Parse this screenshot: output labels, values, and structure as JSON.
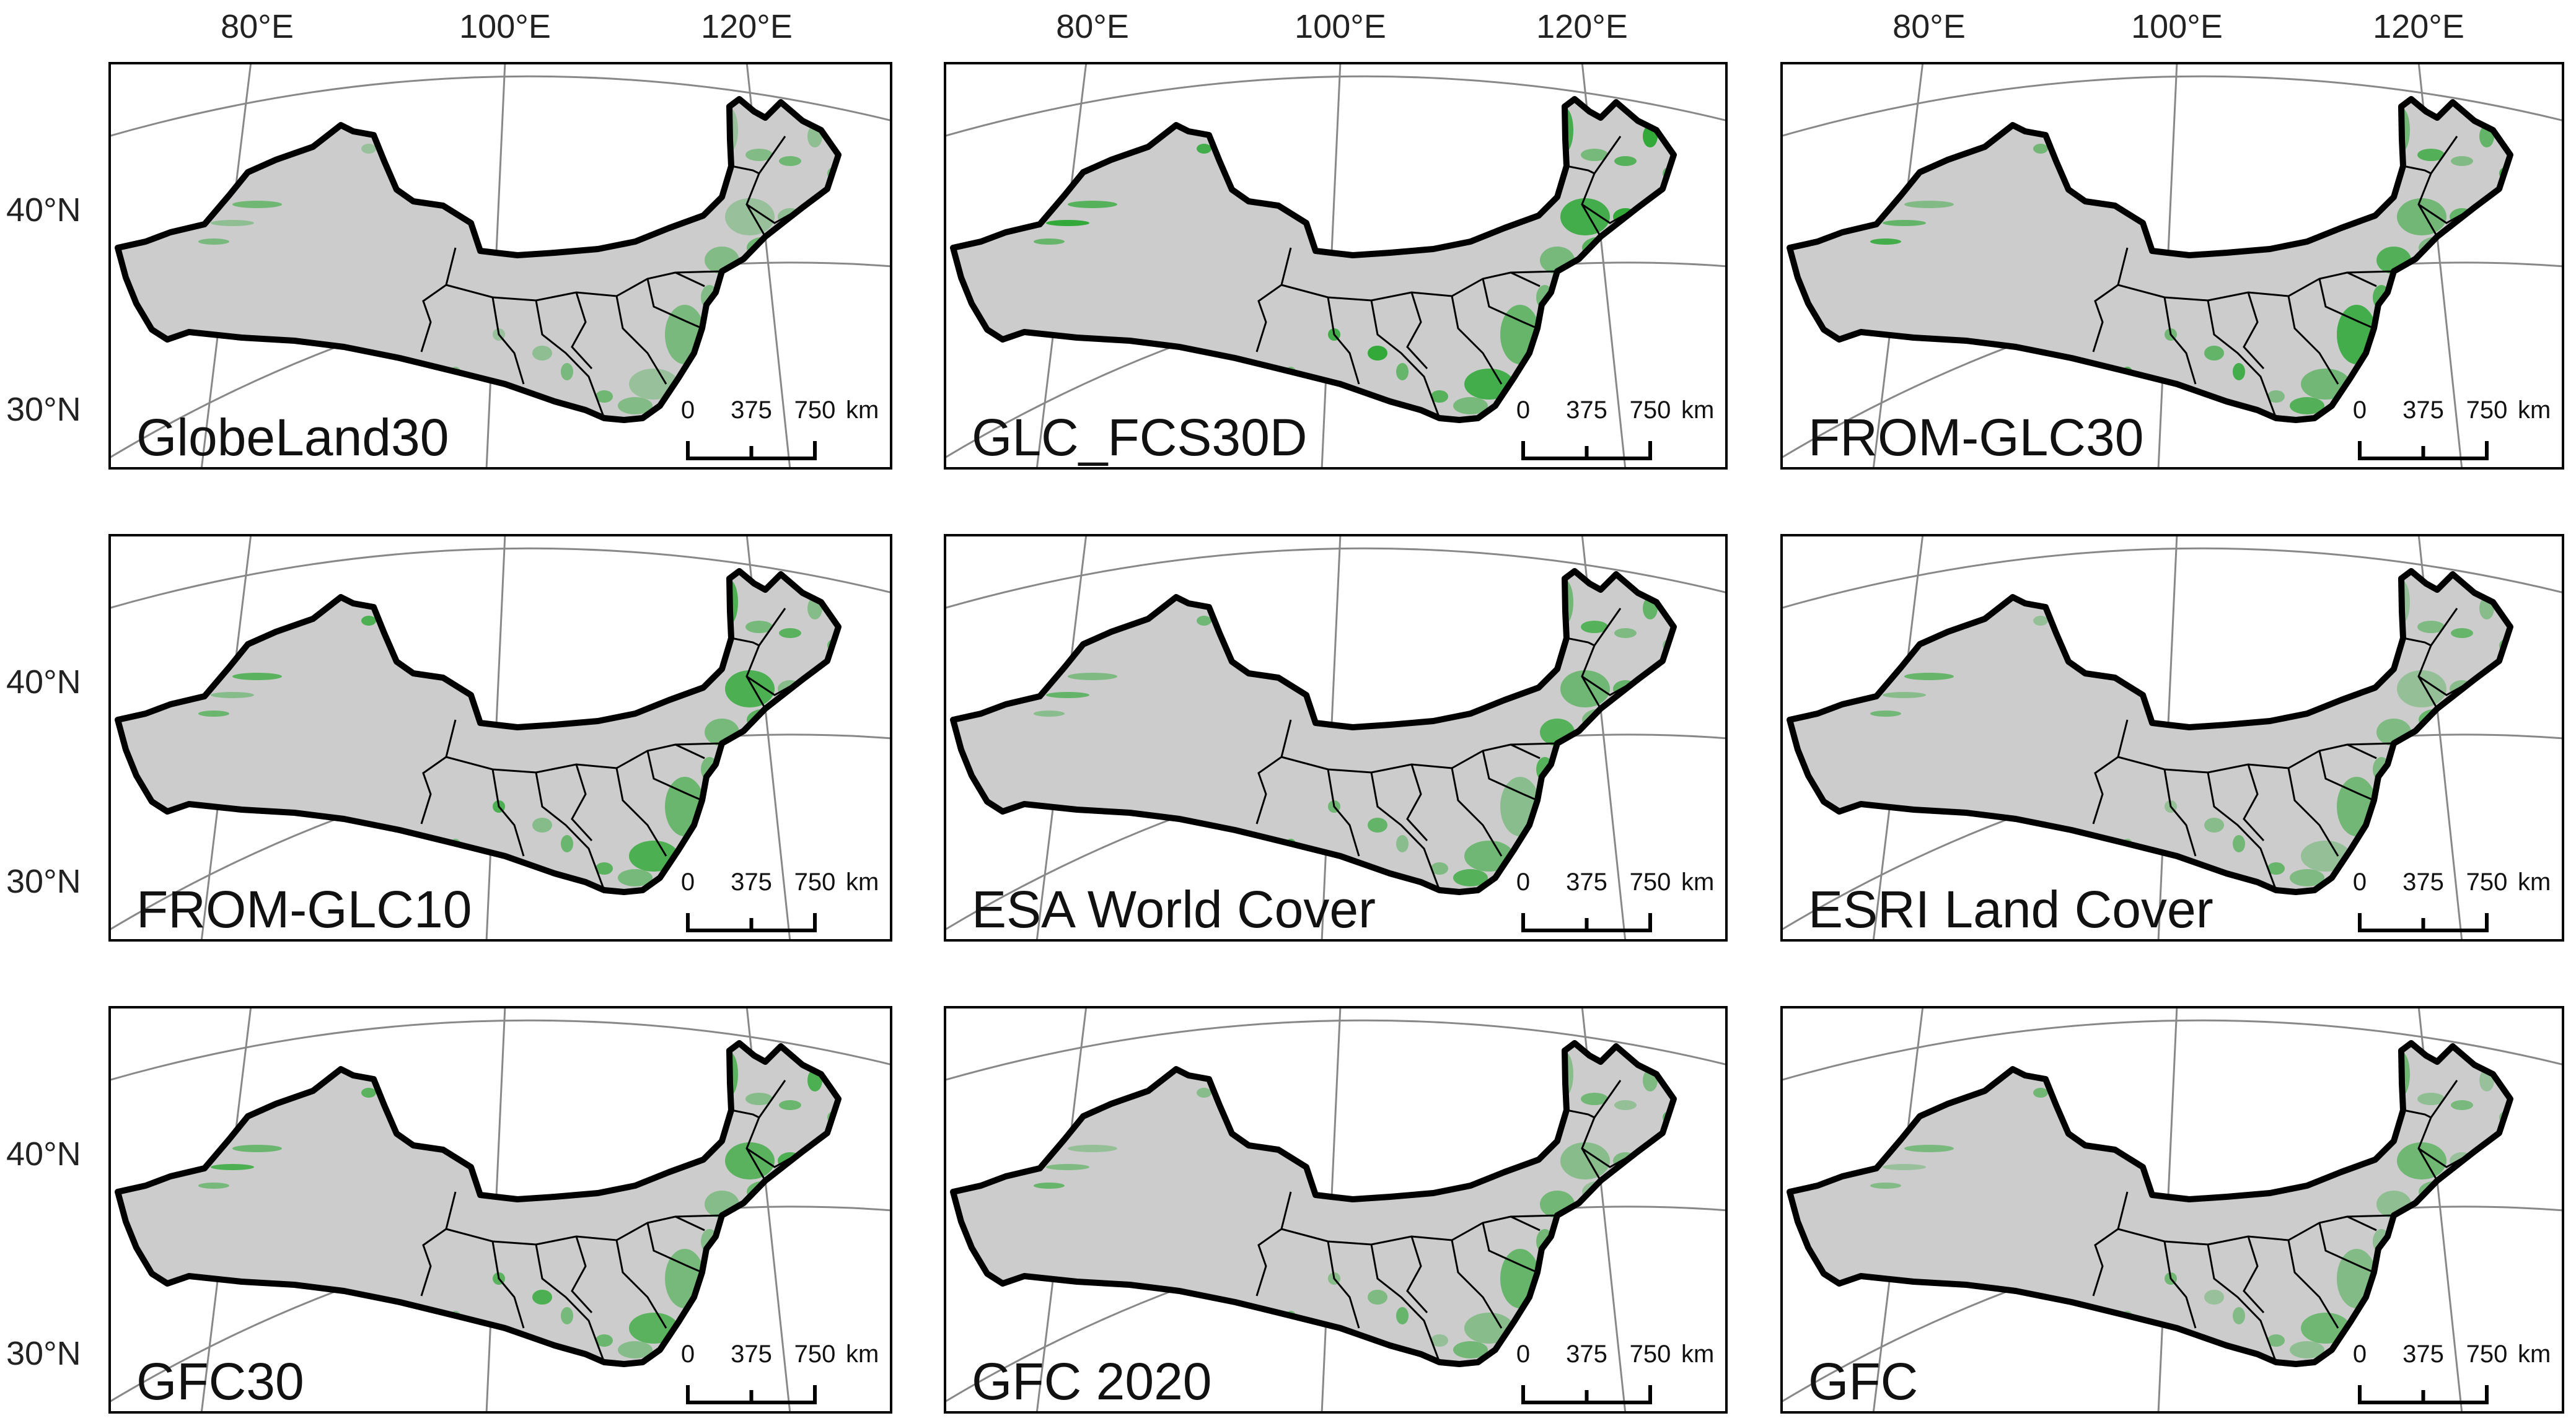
{
  "figure": {
    "longitude_labels": [
      "80°E",
      "100°E",
      "120°E"
    ],
    "latitude_labels": [
      "40°N",
      "30°N"
    ],
    "scale_bar": {
      "ticks": [
        "0",
        "375",
        "750"
      ],
      "unit": "km"
    }
  },
  "panels": [
    {
      "name": "GlobeLand30"
    },
    {
      "name": "GLC_FCS30D"
    },
    {
      "name": "FROM-GLC30"
    },
    {
      "name": "FROM-GLC10"
    },
    {
      "name": "ESA World Cover"
    },
    {
      "name": "ESRI Land Cover"
    },
    {
      "name": "GFC30"
    },
    {
      "name": "GFC 2020"
    },
    {
      "name": "GFC"
    }
  ],
  "colors": {
    "region_fill": "#cccccc",
    "forest_green": "#22a52a",
    "outline": "#000000",
    "graticule": "#888888"
  }
}
